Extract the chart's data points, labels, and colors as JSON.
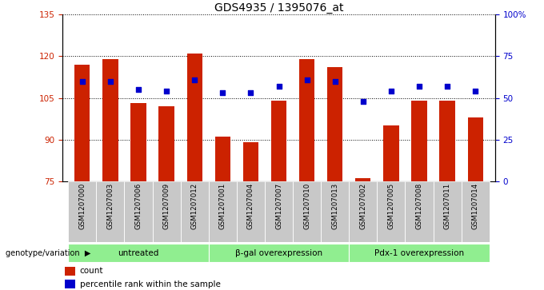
{
  "title": "GDS4935 / 1395076_at",
  "samples": [
    "GSM1207000",
    "GSM1207003",
    "GSM1207006",
    "GSM1207009",
    "GSM1207012",
    "GSM1207001",
    "GSM1207004",
    "GSM1207007",
    "GSM1207010",
    "GSM1207013",
    "GSM1207002",
    "GSM1207005",
    "GSM1207008",
    "GSM1207011",
    "GSM1207014"
  ],
  "counts": [
    117,
    119,
    103,
    102,
    121,
    91,
    89,
    104,
    119,
    116,
    76,
    95,
    104,
    104,
    98
  ],
  "percentiles": [
    60,
    60,
    55,
    54,
    61,
    53,
    53,
    57,
    61,
    60,
    48,
    54,
    57,
    57,
    54
  ],
  "bar_color": "#cc2200",
  "dot_color": "#0000cc",
  "ymin": 75,
  "ymax": 135,
  "y_left_ticks": [
    75,
    90,
    105,
    120,
    135
  ],
  "y_right_ticks": [
    0,
    25,
    50,
    75,
    100
  ],
  "y_right_labels": [
    "0",
    "25",
    "50",
    "75",
    "100%"
  ],
  "groups": [
    {
      "label": "untreated",
      "start": 0,
      "end": 5
    },
    {
      "label": "β-gal overexpression",
      "start": 5,
      "end": 10
    },
    {
      "label": "Pdx-1 overexpression",
      "start": 10,
      "end": 15
    }
  ],
  "group_color": "#90ee90",
  "xlabel_row_color": "#c8c8c8",
  "legend_count_label": "count",
  "legend_pct_label": "percentile rank within the sample",
  "genotype_label": "genotype/variation",
  "background_color": "#ffffff"
}
